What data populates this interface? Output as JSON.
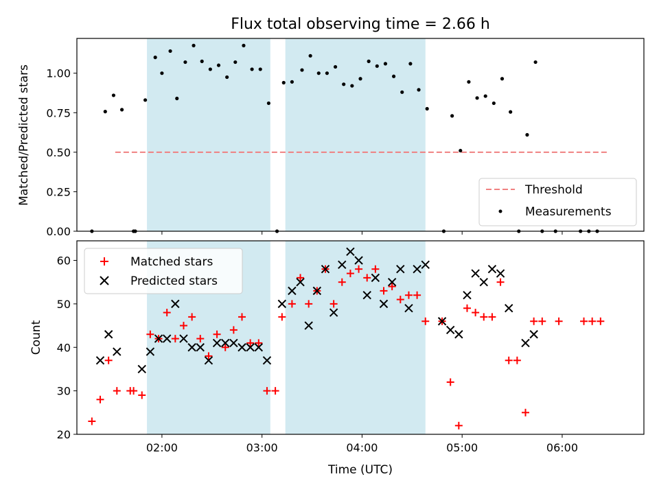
{
  "title": "Flux total observing time = 2.66 h",
  "chart_data": [
    {
      "type": "scatter",
      "ylabel": "Matched/Predicted stars",
      "xlim": [
        "01:09",
        "06:49"
      ],
      "ylim": [
        0,
        1.22
      ],
      "y_ticks": [
        0.0,
        0.25,
        0.5,
        0.75,
        1.0
      ],
      "y_tick_labels": [
        "0.00",
        "0.25",
        "0.50",
        "0.75",
        "1.00"
      ],
      "grid": false,
      "legend": "lower-right",
      "shaded_intervals": [
        [
          "01:51",
          "03:05"
        ],
        [
          "03:14",
          "04:38"
        ]
      ],
      "shade_color": "#add8e6",
      "threshold": {
        "name": "Threshold",
        "value": 0.5,
        "x": [
          "01:32",
          "06:28"
        ],
        "color": "#f08080"
      },
      "series": [
        {
          "name": "Measurements",
          "color": "#000000",
          "points": [
            [
              "01:18",
              0.0
            ],
            [
              "01:26",
              0.757
            ],
            [
              "01:31",
              0.86
            ],
            [
              "01:36",
              0.769
            ],
            [
              "01:43",
              0.0
            ],
            [
              "01:44",
              0.0
            ],
            [
              "01:50",
              0.83
            ],
            [
              "01:56",
              1.1
            ],
            [
              "02:00",
              1.0
            ],
            [
              "02:05",
              1.14
            ],
            [
              "02:09",
              0.84
            ],
            [
              "02:14",
              1.07
            ],
            [
              "02:19",
              1.175
            ],
            [
              "02:24",
              1.075
            ],
            [
              "02:29",
              1.025
            ],
            [
              "02:34",
              1.05
            ],
            [
              "02:39",
              0.975
            ],
            [
              "02:44",
              1.07
            ],
            [
              "02:49",
              1.175
            ],
            [
              "02:54",
              1.025
            ],
            [
              "02:59",
              1.025
            ],
            [
              "03:04",
              0.81
            ],
            [
              "03:09",
              0.0
            ],
            [
              "03:13",
              0.94
            ],
            [
              "03:18",
              0.945
            ],
            [
              "03:24",
              1.02
            ],
            [
              "03:29",
              1.11
            ],
            [
              "03:34",
              1.0
            ],
            [
              "03:39",
              1.0
            ],
            [
              "03:44",
              1.04
            ],
            [
              "03:49",
              0.93
            ],
            [
              "03:54",
              0.92
            ],
            [
              "03:59",
              0.965
            ],
            [
              "04:04",
              1.075
            ],
            [
              "04:09",
              1.045
            ],
            [
              "04:14",
              1.06
            ],
            [
              "04:19",
              0.98
            ],
            [
              "04:24",
              0.88
            ],
            [
              "04:29",
              1.06
            ],
            [
              "04:34",
              0.895
            ],
            [
              "04:39",
              0.775
            ],
            [
              "04:49",
              0.0
            ],
            [
              "04:54",
              0.73
            ],
            [
              "04:59",
              0.51
            ],
            [
              "05:04",
              0.945
            ],
            [
              "05:09",
              0.843
            ],
            [
              "05:14",
              0.855
            ],
            [
              "05:19",
              0.81
            ],
            [
              "05:24",
              0.965
            ],
            [
              "05:29",
              0.755
            ],
            [
              "05:34",
              0.0
            ],
            [
              "05:39",
              0.61
            ],
            [
              "05:44",
              1.07
            ],
            [
              "05:48",
              0.0
            ],
            [
              "05:56",
              0.0
            ],
            [
              "06:11",
              0.0
            ],
            [
              "06:16",
              0.0
            ],
            [
              "06:21",
              0.0
            ]
          ]
        }
      ]
    },
    {
      "type": "scatter",
      "xlabel": "Time (UTC)",
      "ylabel": "Count",
      "xlim": [
        "01:09",
        "06:49"
      ],
      "ylim": [
        20,
        64.5
      ],
      "x_ticks": [
        "02:00",
        "03:00",
        "04:00",
        "05:00",
        "06:00"
      ],
      "y_ticks": [
        20,
        30,
        40,
        50,
        60
      ],
      "grid": false,
      "legend": "upper-left",
      "shaded_intervals": [
        [
          "01:51",
          "03:05"
        ],
        [
          "03:14",
          "04:38"
        ]
      ],
      "shade_color": "#add8e6",
      "series": [
        {
          "name": "Matched stars",
          "marker": "+",
          "color": "#ff0000",
          "points": [
            [
              "01:18",
              23
            ],
            [
              "01:23",
              28
            ],
            [
              "01:28",
              37
            ],
            [
              "01:33",
              30
            ],
            [
              "01:41",
              30
            ],
            [
              "01:43",
              30
            ],
            [
              "01:48",
              29
            ],
            [
              "01:53",
              43
            ],
            [
              "01:58",
              42
            ],
            [
              "02:03",
              48
            ],
            [
              "02:08",
              42
            ],
            [
              "02:13",
              45
            ],
            [
              "02:18",
              47
            ],
            [
              "02:23",
              42
            ],
            [
              "02:28",
              38
            ],
            [
              "02:33",
              43
            ],
            [
              "02:38",
              40
            ],
            [
              "02:43",
              44
            ],
            [
              "02:48",
              47
            ],
            [
              "02:53",
              41
            ],
            [
              "02:58",
              41
            ],
            [
              "03:03",
              30
            ],
            [
              "03:08",
              30
            ],
            [
              "03:12",
              47
            ],
            [
              "03:18",
              50
            ],
            [
              "03:23",
              56
            ],
            [
              "03:28",
              50
            ],
            [
              "03:33",
              53
            ],
            [
              "03:38",
              58
            ],
            [
              "03:43",
              50
            ],
            [
              "03:48",
              55
            ],
            [
              "03:53",
              57
            ],
            [
              "03:58",
              58
            ],
            [
              "04:03",
              56
            ],
            [
              "04:08",
              58
            ],
            [
              "04:13",
              53
            ],
            [
              "04:18",
              54
            ],
            [
              "04:23",
              51
            ],
            [
              "04:28",
              52
            ],
            [
              "04:33",
              52
            ],
            [
              "04:38",
              46
            ],
            [
              "04:48",
              46
            ],
            [
              "04:53",
              32
            ],
            [
              "04:58",
              22
            ],
            [
              "05:03",
              49
            ],
            [
              "05:08",
              48
            ],
            [
              "05:13",
              47
            ],
            [
              "05:18",
              47
            ],
            [
              "05:23",
              55
            ],
            [
              "05:28",
              37
            ],
            [
              "05:33",
              37
            ],
            [
              "05:38",
              25
            ],
            [
              "05:43",
              46
            ],
            [
              "05:48",
              46
            ],
            [
              "05:58",
              46
            ],
            [
              "06:13",
              46
            ],
            [
              "06:18",
              46
            ],
            [
              "06:23",
              46
            ]
          ]
        },
        {
          "name": "Predicted stars",
          "marker": "x",
          "color": "#000000",
          "points": [
            [
              "01:23",
              37
            ],
            [
              "01:28",
              43
            ],
            [
              "01:33",
              39
            ],
            [
              "01:48",
              35
            ],
            [
              "01:53",
              39
            ],
            [
              "01:58",
              42
            ],
            [
              "02:03",
              42
            ],
            [
              "02:08",
              50
            ],
            [
              "02:13",
              42
            ],
            [
              "02:18",
              40
            ],
            [
              "02:23",
              40
            ],
            [
              "02:28",
              37
            ],
            [
              "02:33",
              41
            ],
            [
              "02:38",
              41
            ],
            [
              "02:43",
              41
            ],
            [
              "02:48",
              40
            ],
            [
              "02:53",
              40
            ],
            [
              "02:58",
              40
            ],
            [
              "03:03",
              37
            ],
            [
              "03:12",
              50
            ],
            [
              "03:18",
              53
            ],
            [
              "03:23",
              55
            ],
            [
              "03:28",
              45
            ],
            [
              "03:33",
              53
            ],
            [
              "03:38",
              58
            ],
            [
              "03:43",
              48
            ],
            [
              "03:48",
              59
            ],
            [
              "03:53",
              62
            ],
            [
              "03:58",
              60
            ],
            [
              "04:03",
              52
            ],
            [
              "04:08",
              56
            ],
            [
              "04:13",
              50
            ],
            [
              "04:18",
              55
            ],
            [
              "04:23",
              58
            ],
            [
              "04:28",
              49
            ],
            [
              "04:33",
              58
            ],
            [
              "04:38",
              59
            ],
            [
              "04:48",
              46
            ],
            [
              "04:53",
              44
            ],
            [
              "04:58",
              43
            ],
            [
              "05:03",
              52
            ],
            [
              "05:08",
              57
            ],
            [
              "05:13",
              55
            ],
            [
              "05:18",
              58
            ],
            [
              "05:23",
              57
            ],
            [
              "05:28",
              49
            ],
            [
              "05:38",
              41
            ],
            [
              "05:43",
              43
            ]
          ]
        }
      ]
    }
  ]
}
